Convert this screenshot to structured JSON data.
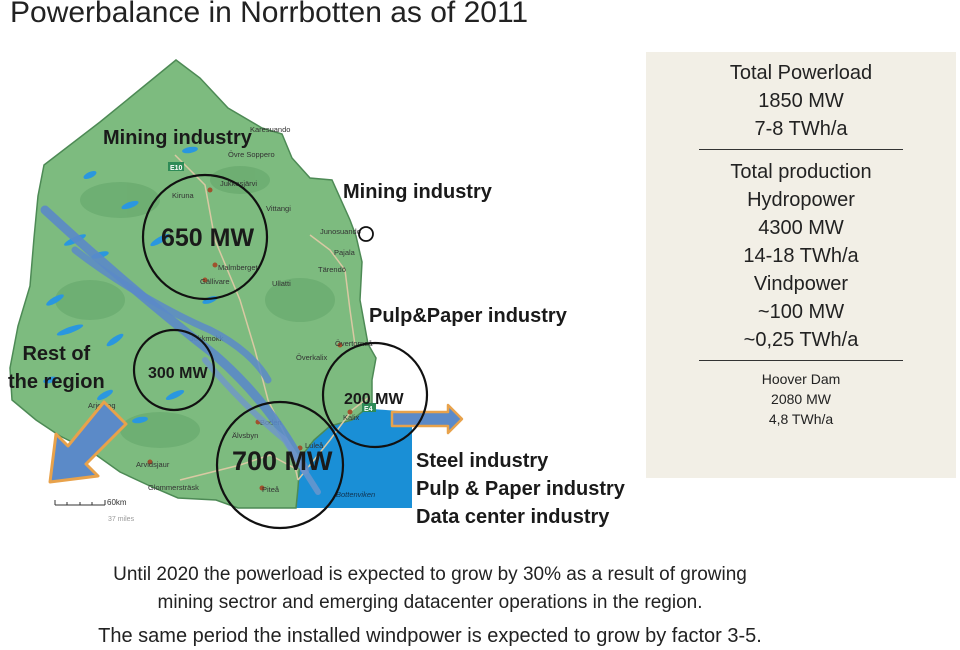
{
  "title": "Powerbalance in Norrbotten as of 2011",
  "map": {
    "places": [
      "Karesuando",
      "Övre Soppero",
      "Jukkasjärvi",
      "Kiruna",
      "Vittangi",
      "Junosuando",
      "Pajala",
      "Tärendö",
      "Malmberget",
      "Gällivare",
      "Ullatti",
      "Jokkmokk",
      "Övertorneå",
      "Överkalix",
      "Kalix",
      "Boden",
      "Älvsbyn",
      "Luleå",
      "Arvidsjaur",
      "Arjeplog",
      "Glommersträsk",
      "Piteå",
      "Bottenviken"
    ],
    "roads": [
      "E10",
      "E4"
    ],
    "scale": {
      "km": "60km",
      "miles": "37 miles"
    }
  },
  "labels": {
    "mining_top": "Mining industry",
    "mining_east": "Mining industry",
    "pulp_paper": "Pulp&Paper industry",
    "rest_region": [
      "Rest of",
      "the region"
    ],
    "mw_650": "650 MW",
    "mw_300": "300 MW",
    "mw_200": "200 MW",
    "mw_700": "700 MW",
    "steel": "Steel industry",
    "pulp_paper_2": "Pulp & Paper industry",
    "datacenter": "Data center industry"
  },
  "side_panel": {
    "load": [
      "Total Powerload",
      "1850 MW",
      "7-8 TWh/a"
    ],
    "production": [
      "Total production",
      "Hydropower",
      "4300 MW",
      "14-18 TWh/a",
      "Vindpower",
      "~100 MW",
      "~0,25 TWh/a"
    ],
    "hoover": [
      "Hoover Dam",
      "2080 MW",
      "4,8 TWh/a"
    ]
  },
  "footer": [
    "Until 2020 the powerload is expected to grow by 30% as a result of growing",
    "mining sectror and emerging datacenter operations in the region.",
    "The same period the installed windpower is expected to grow by factor 3-5."
  ],
  "colors": {
    "land": "#7dbb7f",
    "land_dark": "#5f9e66",
    "sea": "#1a8fd6",
    "lakes": "#2a97df",
    "arrows": "#5b8ac8",
    "arrow_orange": "#e8a24b",
    "panel": "#f2efe6"
  }
}
